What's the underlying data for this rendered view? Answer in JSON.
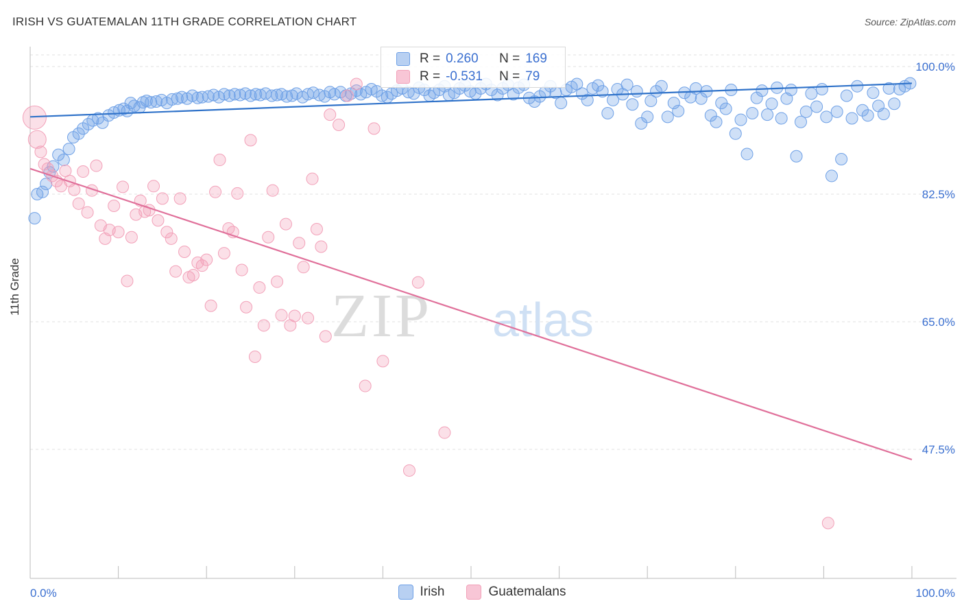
{
  "title": "IRISH VS GUATEMALAN 11TH GRADE CORRELATION CHART",
  "source": "Source: ZipAtlas.com",
  "watermark": {
    "zip": "ZIP",
    "atlas": "atlas"
  },
  "legend": {
    "rows": [
      {
        "r_label": "R =",
        "r_value": "0.260",
        "n_label": "N =",
        "n_value": "169",
        "color": "#6ea0e6"
      },
      {
        "r_label": "R =",
        "r_value": "-0.531",
        "n_label": "N =",
        "n_value": "79",
        "color": "#f2a0b8"
      }
    ]
  },
  "bottom_legend": [
    "Irish",
    "Guatemalans"
  ],
  "colors": {
    "irish": "#6ea0e6",
    "guatemalan": "#f2a0b8",
    "irish_line": "#2f72c9",
    "guatemalan_line": "#e0709a",
    "tick_label": "#3a6fd0"
  },
  "chart_data": {
    "type": "scatter",
    "title": "IRISH VS GUATEMALAN 11TH GRADE CORRELATION CHART",
    "xlabel": "",
    "ylabel": "11th Grade",
    "xlim": [
      0,
      100
    ],
    "ylim": [
      33,
      101
    ],
    "x_tick_labels": [
      "0.0%",
      "100.0%"
    ],
    "y_ticks": [
      47.5,
      65.0,
      82.5,
      100.0
    ],
    "y_tick_labels": [
      "47.5%",
      "65.0%",
      "82.5%",
      "100.0%"
    ],
    "grid": true,
    "legend_position": "top-center",
    "series": [
      {
        "name": "Irish",
        "color": "#6ea0e6",
        "trend": {
          "x": [
            0,
            100
          ],
          "y": [
            93.1,
            97.7
          ]
        },
        "points": [
          [
            0.5,
            79.2
          ],
          [
            0.8,
            82.5
          ],
          [
            1.4,
            82.8
          ],
          [
            1.8,
            83.9
          ],
          [
            2.2,
            85.5
          ],
          [
            2.6,
            86.3
          ],
          [
            3.2,
            87.9
          ],
          [
            3.8,
            87.2
          ],
          [
            4.4,
            88.7
          ],
          [
            4.9,
            90.3
          ],
          [
            5.5,
            90.8
          ],
          [
            6.0,
            91.5
          ],
          [
            6.6,
            92.1
          ],
          [
            7.1,
            92.6
          ],
          [
            7.7,
            92.9
          ],
          [
            8.2,
            92.3
          ],
          [
            8.9,
            93.3
          ],
          [
            9.5,
            93.7
          ],
          [
            10.1,
            94.0
          ],
          [
            10.6,
            94.2
          ],
          [
            11.0,
            93.9
          ],
          [
            11.4,
            95.0
          ],
          [
            11.8,
            94.6
          ],
          [
            12.4,
            94.4
          ],
          [
            12.8,
            95.1
          ],
          [
            13.2,
            95.3
          ],
          [
            13.7,
            95.1
          ],
          [
            14.3,
            95.2
          ],
          [
            14.9,
            95.4
          ],
          [
            15.5,
            95.0
          ],
          [
            16.1,
            95.5
          ],
          [
            16.7,
            95.6
          ],
          [
            17.2,
            95.8
          ],
          [
            17.8,
            95.6
          ],
          [
            18.4,
            96.0
          ],
          [
            19.0,
            95.7
          ],
          [
            19.5,
            95.8
          ],
          [
            20.2,
            95.9
          ],
          [
            20.8,
            96.1
          ],
          [
            21.4,
            95.8
          ],
          [
            22.0,
            96.2
          ],
          [
            22.6,
            96.0
          ],
          [
            23.2,
            96.2
          ],
          [
            23.8,
            96.1
          ],
          [
            24.4,
            96.3
          ],
          [
            25.0,
            96.0
          ],
          [
            25.6,
            96.2
          ],
          [
            26.1,
            96.1
          ],
          [
            26.7,
            96.3
          ],
          [
            27.4,
            96.0
          ],
          [
            28.0,
            96.1
          ],
          [
            28.5,
            96.2
          ],
          [
            29.1,
            95.9
          ],
          [
            29.7,
            96.0
          ],
          [
            30.2,
            96.3
          ],
          [
            30.9,
            95.8
          ],
          [
            31.5,
            96.2
          ],
          [
            32.1,
            96.4
          ],
          [
            32.8,
            96.1
          ],
          [
            33.4,
            95.9
          ],
          [
            34.0,
            96.5
          ],
          [
            34.5,
            96.2
          ],
          [
            35.2,
            96.5
          ],
          [
            35.8,
            96.0
          ],
          [
            36.4,
            96.3
          ],
          [
            37.0,
            96.7
          ],
          [
            37.5,
            96.2
          ],
          [
            38.1,
            96.5
          ],
          [
            38.7,
            96.9
          ],
          [
            39.3,
            96.6
          ],
          [
            39.9,
            96.0
          ],
          [
            40.5,
            95.8
          ],
          [
            41.0,
            96.3
          ],
          [
            41.6,
            96.7
          ],
          [
            42.2,
            97.0
          ],
          [
            42.9,
            96.5
          ],
          [
            43.5,
            96.3
          ],
          [
            44.1,
            97.1
          ],
          [
            44.7,
            96.8
          ],
          [
            45.3,
            96.0
          ],
          [
            45.8,
            96.4
          ],
          [
            46.4,
            96.8
          ],
          [
            47.0,
            97.3
          ],
          [
            47.5,
            96.1
          ],
          [
            48.1,
            96.4
          ],
          [
            48.7,
            97.0
          ],
          [
            49.3,
            97.4
          ],
          [
            49.9,
            96.6
          ],
          [
            50.5,
            96.3
          ],
          [
            51.1,
            97.0
          ],
          [
            51.7,
            97.6
          ],
          [
            52.3,
            96.8
          ],
          [
            53.0,
            96.1
          ],
          [
            53.6,
            97.0
          ],
          [
            54.2,
            97.5
          ],
          [
            54.8,
            96.2
          ],
          [
            55.4,
            97.1
          ],
          [
            56.0,
            97.5
          ],
          [
            56.6,
            95.7
          ],
          [
            57.2,
            95.2
          ],
          [
            57.8,
            95.9
          ],
          [
            58.4,
            96.5
          ],
          [
            59.0,
            97.3
          ],
          [
            59.6,
            96.4
          ],
          [
            60.2,
            95.0
          ],
          [
            60.8,
            96.8
          ],
          [
            61.4,
            97.2
          ],
          [
            62.0,
            97.6
          ],
          [
            62.6,
            96.3
          ],
          [
            63.2,
            95.4
          ],
          [
            63.8,
            97.0
          ],
          [
            64.4,
            97.4
          ],
          [
            64.9,
            96.6
          ],
          [
            65.5,
            93.6
          ],
          [
            66.1,
            95.4
          ],
          [
            66.6,
            96.9
          ],
          [
            67.2,
            96.2
          ],
          [
            67.7,
            97.5
          ],
          [
            68.3,
            94.8
          ],
          [
            68.8,
            96.6
          ],
          [
            69.3,
            92.2
          ],
          [
            70.0,
            93.1
          ],
          [
            70.4,
            95.3
          ],
          [
            71.0,
            96.6
          ],
          [
            71.6,
            97.3
          ],
          [
            72.3,
            93.1
          ],
          [
            73.0,
            95.0
          ],
          [
            73.5,
            93.9
          ],
          [
            74.2,
            96.4
          ],
          [
            74.9,
            95.8
          ],
          [
            75.5,
            97.0
          ],
          [
            76.1,
            95.6
          ],
          [
            76.7,
            96.6
          ],
          [
            77.2,
            93.3
          ],
          [
            77.8,
            92.4
          ],
          [
            78.4,
            95.0
          ],
          [
            78.9,
            94.2
          ],
          [
            79.5,
            96.8
          ],
          [
            80.0,
            90.8
          ],
          [
            80.6,
            92.7
          ],
          [
            81.3,
            88.0
          ],
          [
            81.9,
            93.6
          ],
          [
            82.4,
            95.7
          ],
          [
            83.0,
            96.7
          ],
          [
            83.6,
            93.4
          ],
          [
            84.1,
            94.9
          ],
          [
            84.7,
            97.1
          ],
          [
            85.2,
            92.9
          ],
          [
            85.8,
            95.6
          ],
          [
            86.3,
            96.8
          ],
          [
            86.9,
            87.7
          ],
          [
            87.4,
            92.4
          ],
          [
            88.0,
            93.8
          ],
          [
            88.6,
            96.3
          ],
          [
            89.2,
            94.5
          ],
          [
            89.8,
            96.9
          ],
          [
            90.3,
            93.1
          ],
          [
            90.9,
            85.0
          ],
          [
            91.5,
            93.8
          ],
          [
            92.0,
            87.3
          ],
          [
            92.6,
            96.0
          ],
          [
            93.2,
            92.9
          ],
          [
            93.8,
            97.3
          ],
          [
            94.4,
            94.0
          ],
          [
            95.0,
            93.3
          ],
          [
            95.6,
            96.4
          ],
          [
            96.2,
            94.6
          ],
          [
            96.8,
            93.5
          ],
          [
            97.4,
            97.0
          ],
          [
            98.0,
            94.9
          ],
          [
            98.6,
            96.9
          ],
          [
            99.2,
            97.3
          ],
          [
            99.8,
            97.7
          ]
        ]
      },
      {
        "name": "Guatemalans",
        "color": "#f2a0b8",
        "trend": {
          "x": [
            0,
            100
          ],
          "y": [
            86.0,
            46.1
          ]
        },
        "points": [
          [
            0.5,
            93.0
          ],
          [
            0.8,
            90.0
          ],
          [
            1.2,
            88.3
          ],
          [
            1.6,
            86.6
          ],
          [
            2.0,
            86.0
          ],
          [
            2.5,
            85.0
          ],
          [
            3.0,
            84.3
          ],
          [
            3.5,
            83.6
          ],
          [
            4.0,
            85.7
          ],
          [
            4.5,
            84.3
          ],
          [
            5.0,
            83.1
          ],
          [
            5.5,
            81.2
          ],
          [
            6.0,
            85.6
          ],
          [
            6.5,
            80.0
          ],
          [
            7.0,
            83.0
          ],
          [
            7.5,
            86.4
          ],
          [
            8.0,
            78.2
          ],
          [
            8.5,
            76.4
          ],
          [
            9.0,
            77.6
          ],
          [
            9.5,
            80.9
          ],
          [
            10.0,
            77.3
          ],
          [
            10.5,
            83.5
          ],
          [
            11.0,
            70.6
          ],
          [
            11.5,
            76.6
          ],
          [
            12.0,
            79.7
          ],
          [
            12.5,
            81.6
          ],
          [
            13.0,
            80.1
          ],
          [
            13.5,
            80.3
          ],
          [
            14.0,
            83.6
          ],
          [
            14.5,
            78.9
          ],
          [
            15.0,
            81.9
          ],
          [
            15.5,
            77.3
          ],
          [
            16.0,
            76.4
          ],
          [
            16.5,
            71.9
          ],
          [
            17.0,
            81.9
          ],
          [
            17.5,
            74.6
          ],
          [
            18.0,
            71.1
          ],
          [
            18.5,
            71.4
          ],
          [
            19.0,
            73.1
          ],
          [
            19.5,
            72.7
          ],
          [
            20.0,
            73.5
          ],
          [
            20.5,
            67.2
          ],
          [
            21.0,
            82.8
          ],
          [
            21.5,
            87.2
          ],
          [
            22.0,
            74.4
          ],
          [
            22.5,
            77.8
          ],
          [
            23.0,
            77.3
          ],
          [
            23.5,
            82.6
          ],
          [
            24.0,
            72.1
          ],
          [
            24.5,
            67.0
          ],
          [
            25.0,
            89.9
          ],
          [
            25.5,
            60.2
          ],
          [
            26.0,
            69.7
          ],
          [
            26.5,
            64.5
          ],
          [
            27.0,
            76.6
          ],
          [
            27.5,
            83.0
          ],
          [
            28.0,
            70.5
          ],
          [
            28.5,
            65.9
          ],
          [
            29.0,
            78.4
          ],
          [
            29.5,
            64.5
          ],
          [
            30.0,
            65.8
          ],
          [
            30.5,
            75.8
          ],
          [
            31.0,
            72.5
          ],
          [
            31.5,
            65.5
          ],
          [
            32.0,
            84.6
          ],
          [
            32.5,
            77.7
          ],
          [
            33.0,
            75.3
          ],
          [
            33.5,
            63.0
          ],
          [
            34.0,
            93.4
          ],
          [
            35.0,
            92.0
          ],
          [
            36.0,
            96.0
          ],
          [
            37.0,
            97.6
          ],
          [
            38.0,
            56.2
          ],
          [
            39.0,
            91.5
          ],
          [
            40.0,
            59.6
          ],
          [
            43.0,
            44.6
          ],
          [
            44.0,
            70.4
          ],
          [
            47.0,
            49.8
          ],
          [
            90.5,
            37.4
          ]
        ]
      }
    ]
  }
}
